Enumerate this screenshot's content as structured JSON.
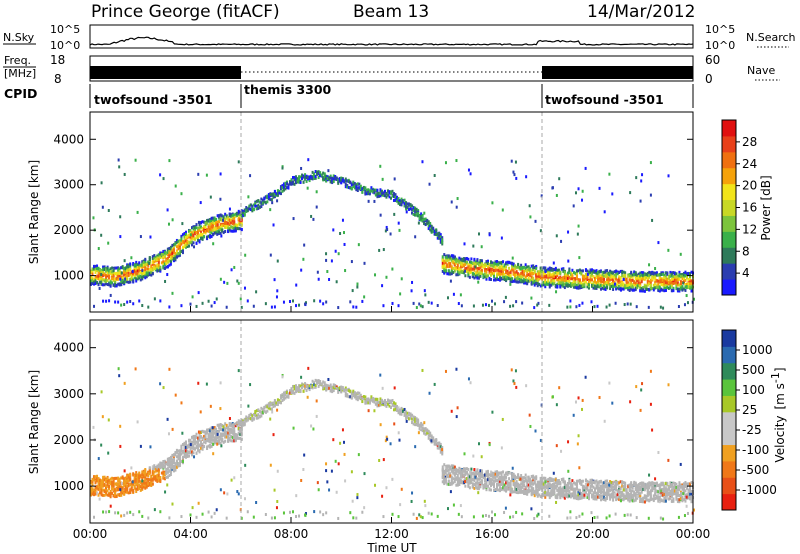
{
  "header": {
    "station": "Prince George (fitACF)",
    "beam": "Beam 13",
    "date": "14/Mar/2012"
  },
  "noise_panel": {
    "left_label": "N.Sky",
    "right_label": "N.Search",
    "ticks_left": [
      "10^5",
      "10^0"
    ],
    "ticks_right": [
      "10^5",
      "10^0"
    ]
  },
  "freq_panel": {
    "label_line1": "Freq.",
    "label_line2": "[MHz]",
    "ticks_left": [
      "18",
      "8"
    ],
    "right_label": "Nave",
    "ticks_right": [
      "60",
      "0"
    ]
  },
  "cpid": {
    "label": "CPID",
    "modes": [
      {
        "name": "twofsound -3501",
        "start": 0,
        "end": 6
      },
      {
        "name": "themis 3300",
        "start": 6,
        "end": 18
      },
      {
        "name": "twofsound -3501",
        "start": 18,
        "end": 24
      }
    ]
  },
  "chart_data": [
    {
      "type": "heatmap",
      "name": "Power",
      "ylabel": "Slant Range [km]",
      "xlabel": "",
      "xlim": [
        0,
        24
      ],
      "ylim": [
        200,
        4600
      ],
      "yticks": [
        "1000",
        "2000",
        "3000",
        "4000"
      ],
      "colorbar": {
        "label": "Power [dB]",
        "ticks": [
          "28",
          "24",
          "20",
          "16",
          "12",
          "8",
          "4"
        ],
        "range": [
          0,
          30
        ],
        "colors": [
          "#1a1aff",
          "#2b3db0",
          "#2e7a5a",
          "#3ab04a",
          "#7cc43c",
          "#c8d826",
          "#f2e41a",
          "#f5a20a",
          "#f07010",
          "#e8401a",
          "#e01010"
        ]
      },
      "scatter_bands": [
        {
          "t": [
            0,
            1,
            2,
            3,
            4,
            5,
            6
          ],
          "r": [
            1050,
            1000,
            1150,
            1400,
            1900,
            2150,
            2250
          ],
          "level": "high"
        },
        {
          "t": [
            6,
            7,
            8,
            9,
            10,
            11,
            12,
            13,
            14
          ],
          "r": [
            2400,
            2700,
            3100,
            3250,
            3100,
            2900,
            2800,
            2400,
            1800
          ],
          "level": "low"
        },
        {
          "t": [
            14,
            15,
            16,
            17,
            18,
            20,
            22,
            24
          ],
          "r": [
            1300,
            1200,
            1150,
            1100,
            1000,
            950,
            900,
            900
          ],
          "level": "high"
        }
      ]
    },
    {
      "type": "heatmap",
      "name": "Velocity",
      "ylabel": "Slant Range [km]",
      "xlabel": "Time UT",
      "xlim": [
        0,
        24
      ],
      "ylim": [
        200,
        4600
      ],
      "xticks": [
        "00:00",
        "04:00",
        "08:00",
        "12:00",
        "16:00",
        "20:00",
        "00:00"
      ],
      "yticks": [
        "1000",
        "2000",
        "3000",
        "4000"
      ],
      "colorbar": {
        "label_main": "Velocity",
        "label_unit": "[m s",
        "label_exp": "-1",
        "label_close": "]",
        "ticks": [
          "1000",
          "500",
          "100",
          "25",
          "-25",
          "-100",
          "-500",
          "-1000"
        ],
        "colors": [
          "#1a3aa0",
          "#2a6ab0",
          "#2e8a5a",
          "#5ac43c",
          "#a8c828",
          "#c8c8c8",
          "#c8c8c8",
          "#f0a020",
          "#f07818",
          "#e85018",
          "#e82010"
        ]
      }
    }
  ],
  "colors": {
    "ground_scatter": "#b4b4b4",
    "mode_divider": "#aaaaaa"
  }
}
